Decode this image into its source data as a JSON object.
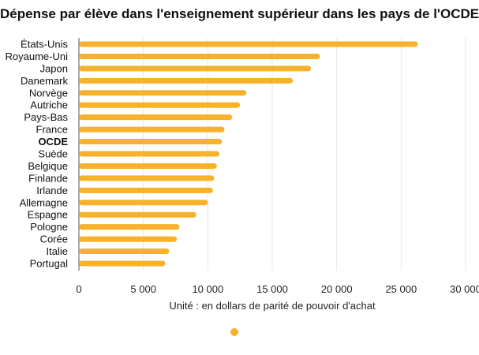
{
  "chart_data": {
    "type": "bar",
    "orientation": "horizontal",
    "title": "Dépense par élève dans l'enseignement supérieur dans les pays de l'OCDE",
    "xlabel": "Unité : en dollars de parité de pouvoir d'achat",
    "ylabel": "",
    "xlim": [
      0,
      30000
    ],
    "x_ticks": [
      0,
      5000,
      10000,
      15000,
      20000,
      25000,
      30000
    ],
    "x_tick_labels": [
      "0",
      "5 000",
      "10 000",
      "15 000",
      "20 000",
      "25 000",
      "30 000"
    ],
    "grid": true,
    "legend": "bottom",
    "bar_color": "#F7B12A",
    "highlighted_category": "OCDE",
    "categories": [
      "États-Unis",
      "Royaume-Uni",
      "Japon",
      "Danemark",
      "Norvège",
      "Autriche",
      "Pays-Bas",
      "France",
      "OCDE",
      "Suède",
      "Belgique",
      "Finlande",
      "Irlande",
      "Allemagne",
      "Espagne",
      "Pologne",
      "Corée",
      "Italie",
      "Portugal"
    ],
    "values": [
      26300,
      18700,
      18000,
      16600,
      13000,
      12500,
      11900,
      11300,
      11100,
      10900,
      10700,
      10500,
      10400,
      10000,
      9100,
      7800,
      7600,
      7000,
      6700
    ]
  }
}
